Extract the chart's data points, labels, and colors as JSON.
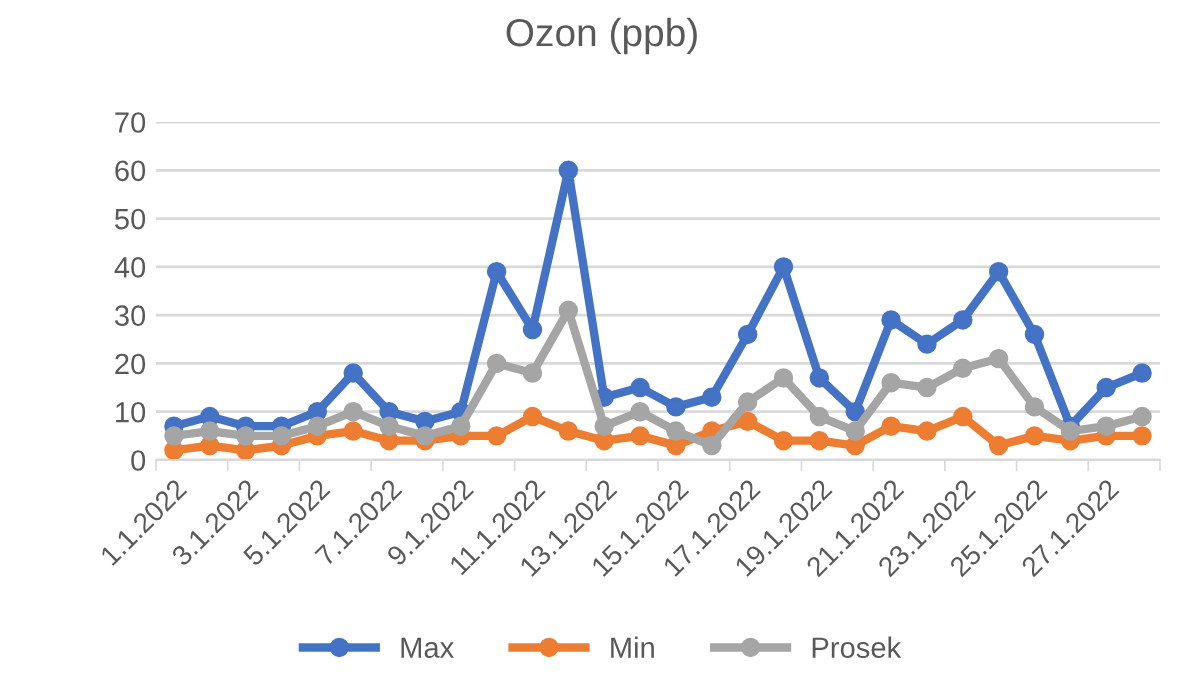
{
  "chart_data": {
    "type": "line",
    "title": "Ozon (ppb)",
    "categories": [
      "1.1.2022",
      null,
      "3.1.2022",
      null,
      "5.1.2022",
      null,
      "7.1.2022",
      null,
      "9.1.2022",
      null,
      "11.1.2022",
      null,
      "13.1.2022",
      null,
      "15.1.2022",
      null,
      "17.1.2022",
      null,
      "19.1.2022",
      null,
      "21.1.2022",
      null,
      "23.1.2022",
      null,
      "25.1.2022",
      null,
      "27.1.2022",
      null
    ],
    "series": [
      {
        "name": "Max",
        "color": "#4472c4",
        "values": [
          7,
          9,
          7,
          7,
          10,
          18,
          10,
          8,
          10,
          39,
          27,
          60,
          13,
          15,
          11,
          13,
          26,
          40,
          17,
          10,
          29,
          24,
          29,
          39,
          26,
          7,
          15,
          18
        ]
      },
      {
        "name": "Min",
        "color": "#ed7d31",
        "values": [
          2,
          3,
          2,
          3,
          5,
          6,
          4,
          4,
          5,
          5,
          9,
          6,
          4,
          5,
          3,
          6,
          8,
          4,
          4,
          3,
          7,
          6,
          9,
          3,
          5,
          4,
          5,
          5
        ]
      },
      {
        "name": "Prosek",
        "color": "#a5a5a5",
        "values": [
          5,
          6,
          5,
          5,
          7,
          10,
          7,
          5,
          7,
          20,
          18,
          31,
          7,
          10,
          6,
          3,
          12,
          17,
          9,
          6,
          16,
          15,
          19,
          21,
          11,
          6,
          7,
          9
        ]
      }
    ],
    "ylim": [
      0,
      70
    ],
    "yticks": [
      0,
      10,
      20,
      30,
      40,
      50,
      60,
      70
    ],
    "grid": "y",
    "legend": "bottom",
    "marker": "circle",
    "line_style": "solid"
  }
}
